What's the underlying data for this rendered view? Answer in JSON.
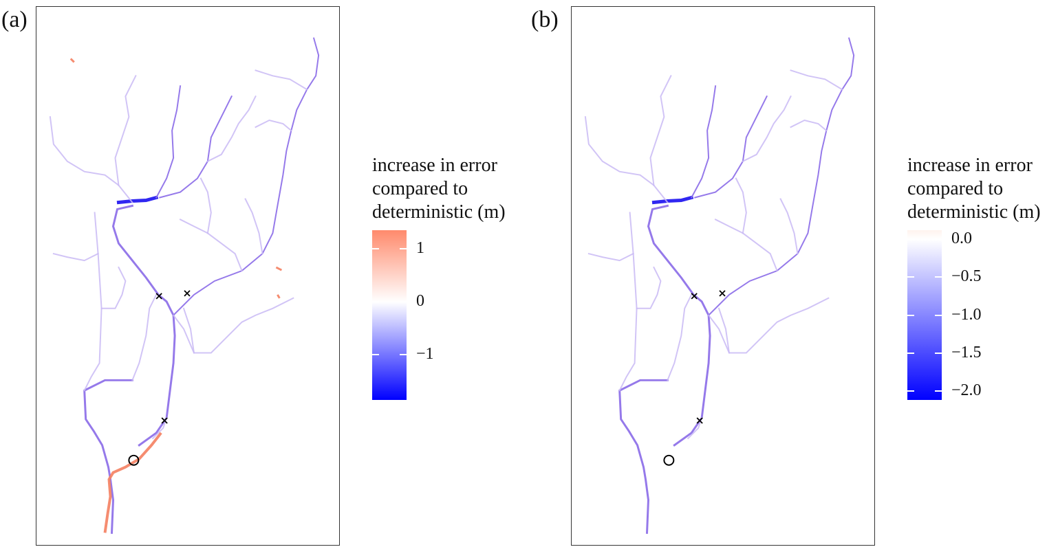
{
  "panels": [
    {
      "id": "a",
      "label": "(a)",
      "legend": {
        "title_lines": [
          "increase in error",
          "compared to",
          "deterministic (m)"
        ],
        "ticks": [
          {
            "label": "1",
            "value": 1
          },
          {
            "label": "0",
            "value": 0
          },
          {
            "label": "−1",
            "value": -1
          }
        ],
        "range": [
          -1.85,
          1.35
        ],
        "gradient": [
          "#ff8a6c",
          "#ffffff",
          "#0000ff"
        ]
      },
      "markers": {
        "x_marks": 3,
        "circle_marks": 1
      }
    },
    {
      "id": "b",
      "label": "(b)",
      "legend": {
        "title_lines": [
          "increase in error",
          "compared to",
          "deterministic (m)"
        ],
        "ticks": [
          {
            "label": "0.0",
            "value": 0.0
          },
          {
            "label": "−0.5",
            "value": -0.5
          },
          {
            "label": "−1.0",
            "value": -1.0
          },
          {
            "label": "−1.5",
            "value": -1.5
          },
          {
            "label": "−2.0",
            "value": -2.0
          }
        ],
        "range": [
          -2.12,
          0.12
        ],
        "gradient": [
          "#fff3ee",
          "#ffffff",
          "#0000ff"
        ]
      },
      "markers": {
        "x_marks": 3,
        "circle_marks": 1
      }
    }
  ],
  "colors": {
    "stream_main": "#8a6ae8",
    "stream_light": "#c9baf5",
    "stream_dark": "#1a10f0",
    "stream_orange": "#f47f61",
    "frame": "#333333"
  }
}
